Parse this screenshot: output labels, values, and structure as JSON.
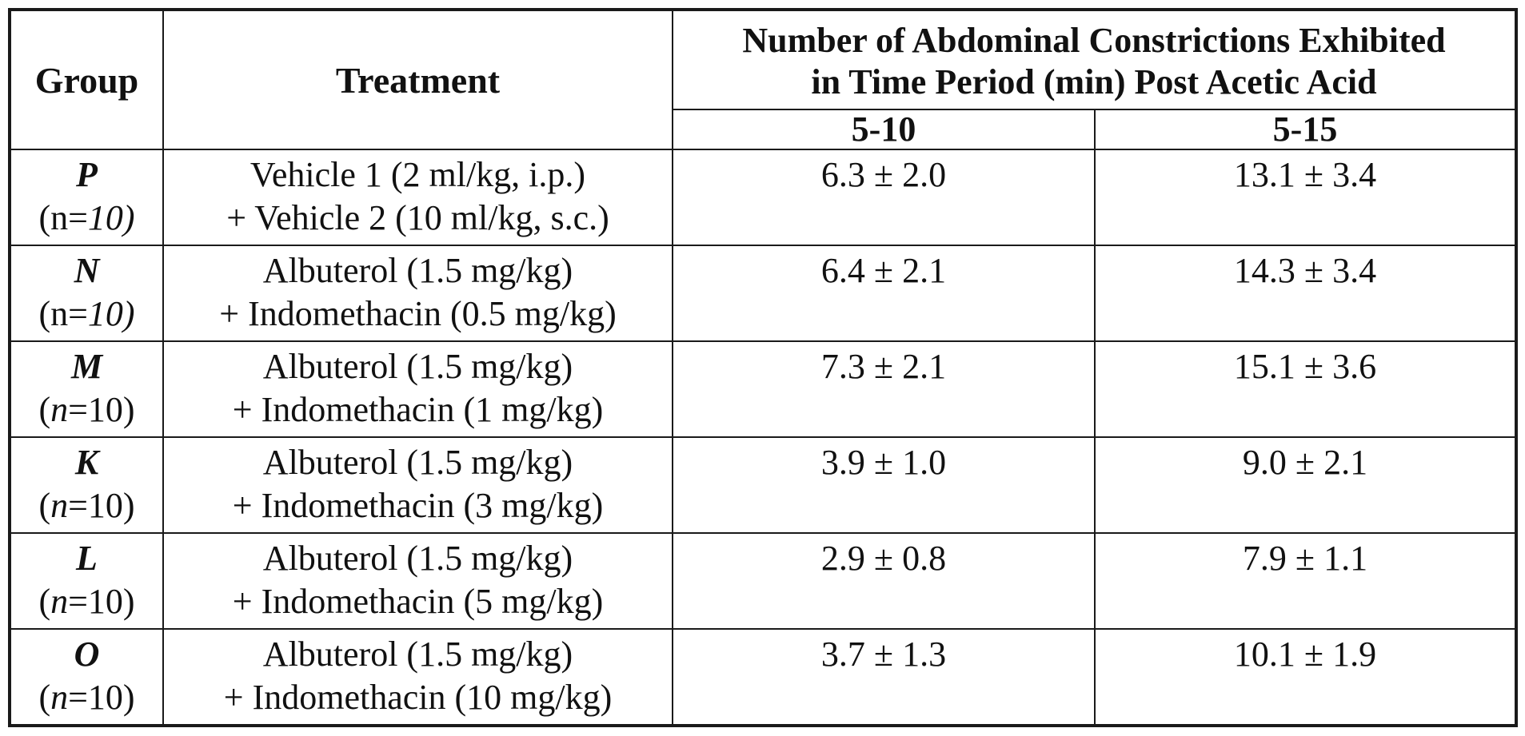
{
  "table": {
    "headers": {
      "group": "Group",
      "treatment": "Treatment",
      "constrictions_line1": "Number of Abdominal Constrictions Exhibited",
      "constrictions_line2": "in Time Period (min) Post Acetic Acid",
      "period_a": "5-10",
      "period_b": "5-15"
    },
    "rows": [
      {
        "group": "P",
        "n_pre": "(n=",
        "n_val": "10)",
        "treatment_line1": "Vehicle 1 (2 ml/kg, i.p.)",
        "treatment_line2": "+ Vehicle 2 (10 ml/kg, s.c.)",
        "period_a": "6.3 ± 2.0",
        "period_b": "13.1 ± 3.4"
      },
      {
        "group": "N",
        "n_pre": "(n=",
        "n_val": "10)",
        "treatment_line1": "Albuterol (1.5 mg/kg)",
        "treatment_line2": "+ Indomethacin (0.5 mg/kg)",
        "period_a": "6.4 ± 2.1",
        "period_b": "14.3 ± 3.4"
      },
      {
        "group": "M",
        "n_open": "(",
        "n_var": "n",
        "n_rest": "=10)",
        "treatment_line1": "Albuterol (1.5 mg/kg)",
        "treatment_line2": "+ Indomethacin (1 mg/kg)",
        "period_a": "7.3 ± 2.1",
        "period_b": "15.1 ± 3.6"
      },
      {
        "group": "K",
        "n_open": "(",
        "n_var": "n",
        "n_rest": "=10)",
        "treatment_line1": "Albuterol (1.5 mg/kg)",
        "treatment_line2": "+ Indomethacin (3 mg/kg)",
        "period_a": "3.9 ± 1.0",
        "period_b": "9.0 ± 2.1"
      },
      {
        "group": "L",
        "n_open": "(",
        "n_var": "n",
        "n_rest": "=10)",
        "treatment_line1": "Albuterol (1.5 mg/kg)",
        "treatment_line2": "+ Indomethacin (5 mg/kg)",
        "period_a": "2.9 ± 0.8",
        "period_b": "7.9 ± 1.1"
      },
      {
        "group": "O",
        "n_open": "(",
        "n_var": "n",
        "n_rest": "=10)",
        "treatment_line1": "Albuterol (1.5 mg/kg)",
        "treatment_line2": "+ Indomethacin (10 mg/kg)",
        "period_a": "3.7 ± 1.3",
        "period_b": "10.1 ± 1.9"
      }
    ]
  }
}
